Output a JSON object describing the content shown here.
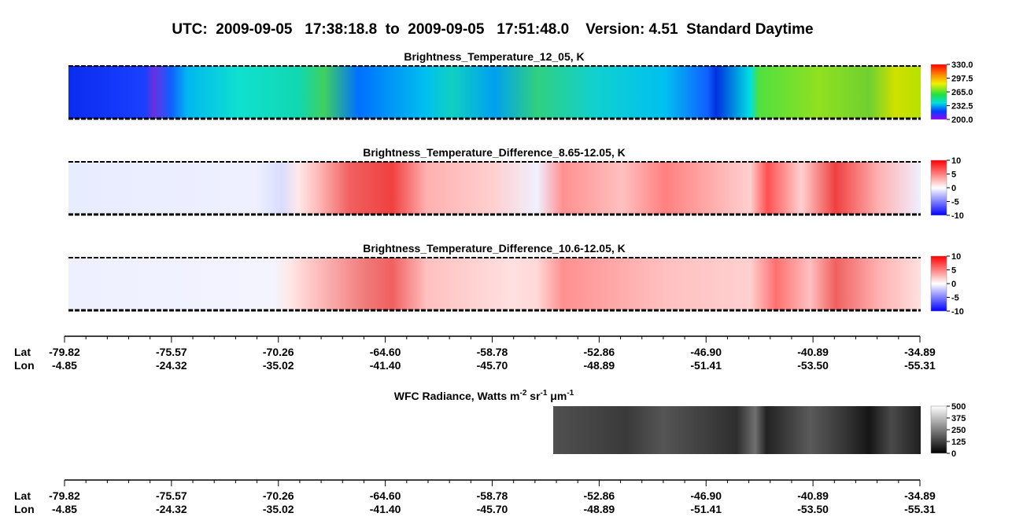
{
  "header": {
    "title": "UTC:  2009-09-05   17:38:18.8  to  2009-09-05   17:51:48.0    Version: 4.51  Standard Daytime"
  },
  "panels": [
    {
      "title": "Brightness_Temperature_12_05, K",
      "colorbar": [
        "330.0",
        "297.5",
        "265.0",
        "232.5",
        "200.0"
      ]
    },
    {
      "title": "Brightness_Temperature_Difference_8.65-12.05, K",
      "colorbar": [
        "10",
        "5",
        "0",
        "-5",
        "-10"
      ]
    },
    {
      "title": "Brightness_Temperature_Difference_10.6-12.05, K",
      "colorbar": [
        "10",
        "5",
        "0",
        "-5",
        "-10"
      ]
    }
  ],
  "wfc": {
    "title_segments": [
      {
        "text": "WFC Radiance, Watts m",
        "superscript": false
      },
      {
        "text": "-2",
        "superscript": true
      },
      {
        "text": " sr",
        "superscript": false
      },
      {
        "text": "-1",
        "superscript": true
      },
      {
        "text": " μm",
        "superscript": false
      },
      {
        "text": "-1",
        "superscript": true
      }
    ],
    "colorbar": [
      "500",
      "375",
      "250",
      "125",
      "0"
    ]
  },
  "axes": [
    {
      "lat_label": "Lat",
      "lon_label": "Lon",
      "lat": [
        "-79.82",
        "-75.57",
        "-70.26",
        "-64.60",
        "-58.78",
        "-52.86",
        "-46.90",
        "-40.89",
        "-34.89"
      ],
      "lon": [
        "-4.85",
        "-24.32",
        "-35.02",
        "-41.40",
        "-45.70",
        "-48.89",
        "-51.41",
        "-53.50",
        "-55.31"
      ]
    },
    {
      "lat_label": "Lat",
      "lon_label": "Lon",
      "lat": [
        "-79.82",
        "-75.57",
        "-70.26",
        "-64.60",
        "-58.78",
        "-52.86",
        "-46.90",
        "-40.89",
        "-34.89"
      ],
      "lon": [
        "-4.85",
        "-24.32",
        "-35.02",
        "-41.40",
        "-45.70",
        "-48.89",
        "-51.41",
        "-53.50",
        "-55.31"
      ]
    }
  ]
}
